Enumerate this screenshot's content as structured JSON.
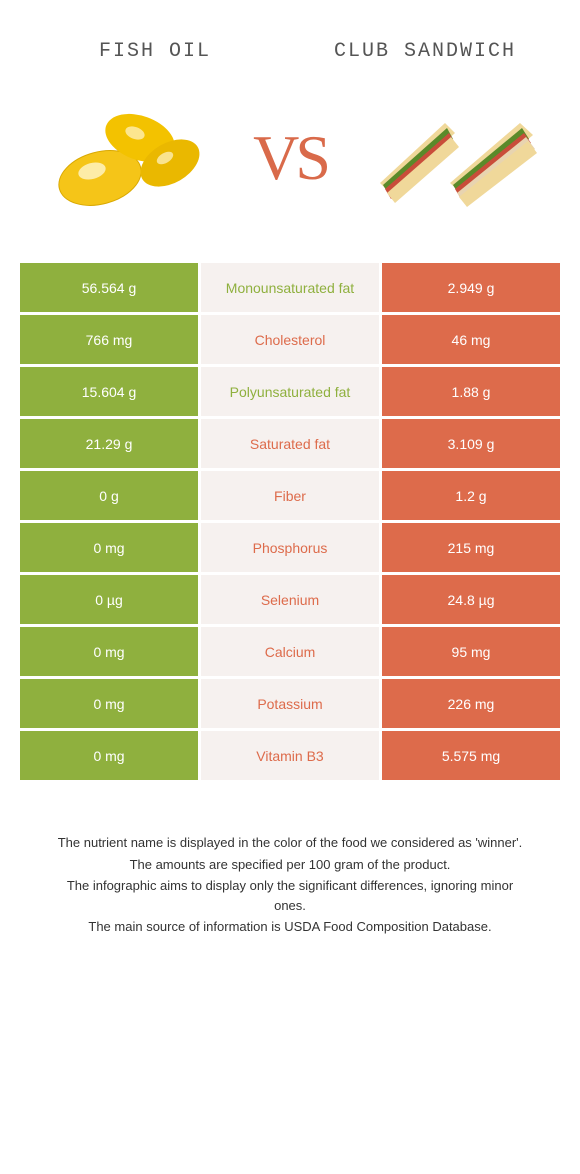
{
  "header": {
    "left_title": "Fish oil",
    "right_title": "Club sandwich",
    "vs": "VS"
  },
  "colors": {
    "left": "#8fb03e",
    "right": "#dd6b4b",
    "mid_bg": "#f6f1ef",
    "mid_text_left": "#8fb03e",
    "mid_text_right": "#dd6b4b"
  },
  "rows": [
    {
      "left": "56.564 g",
      "label": "Monounsaturated fat",
      "right": "2.949 g",
      "winner": "left"
    },
    {
      "left": "766 mg",
      "label": "Cholesterol",
      "right": "46 mg",
      "winner": "right"
    },
    {
      "left": "15.604 g",
      "label": "Polyunsaturated fat",
      "right": "1.88 g",
      "winner": "left"
    },
    {
      "left": "21.29 g",
      "label": "Saturated fat",
      "right": "3.109 g",
      "winner": "right"
    },
    {
      "left": "0 g",
      "label": "Fiber",
      "right": "1.2 g",
      "winner": "right"
    },
    {
      "left": "0 mg",
      "label": "Phosphorus",
      "right": "215 mg",
      "winner": "right"
    },
    {
      "left": "0 µg",
      "label": "Selenium",
      "right": "24.8 µg",
      "winner": "right"
    },
    {
      "left": "0 mg",
      "label": "Calcium",
      "right": "95 mg",
      "winner": "right"
    },
    {
      "left": "0 mg",
      "label": "Potassium",
      "right": "226 mg",
      "winner": "right"
    },
    {
      "left": "0 mg",
      "label": "Vitamin B3",
      "right": "5.575 mg",
      "winner": "right"
    }
  ],
  "footnotes": [
    "The nutrient name is displayed in the color of the food we considered as 'winner'.",
    "The amounts are specified per 100 gram of the product.",
    "The infographic aims to display only the significant differences, ignoring minor ones.",
    "The main source of information is USDA Food Composition Database."
  ]
}
